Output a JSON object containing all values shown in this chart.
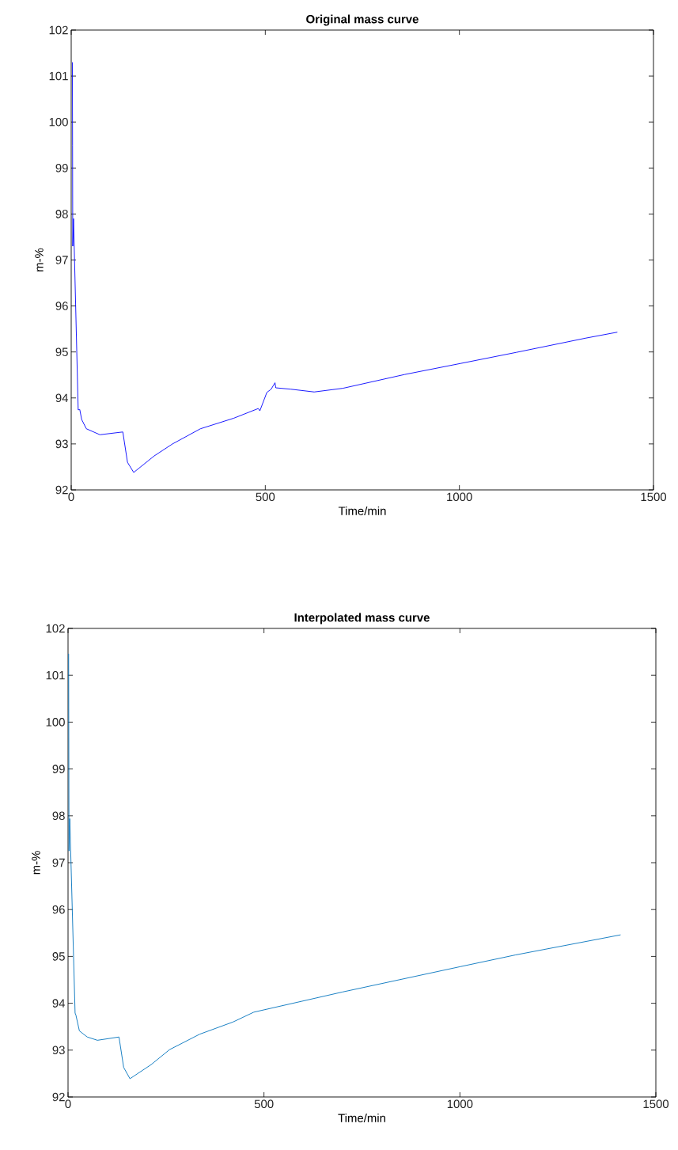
{
  "chart_data": [
    {
      "type": "line",
      "title": "Original mass curve",
      "xlabel": "Time/min",
      "ylabel": "m-%",
      "grid": false,
      "line_style": "solid",
      "xlim": [
        0,
        1500
      ],
      "ylim": [
        92,
        102
      ],
      "xticks": [
        0,
        500,
        1000,
        1500
      ],
      "yticks": [
        92,
        93,
        94,
        95,
        96,
        97,
        98,
        99,
        100,
        101,
        102
      ],
      "x": [
        3,
        3.5,
        4,
        6,
        18,
        22,
        27,
        39,
        74,
        133,
        145,
        161,
        214,
        261,
        333,
        419,
        482,
        486,
        504,
        515,
        525,
        527,
        566,
        626,
        700,
        859,
        1003,
        1146,
        1325,
        1407
      ],
      "series": [
        {
          "color": "#0000ff",
          "values": [
            101.3,
            99.5,
            97.3,
            97.9,
            93.74,
            93.75,
            93.53,
            93.33,
            93.2,
            93.26,
            92.6,
            92.38,
            92.74,
            93.0,
            93.33,
            93.56,
            93.77,
            93.72,
            94.12,
            94.19,
            94.33,
            94.22,
            94.19,
            94.13,
            94.21,
            94.51,
            94.75,
            94.99,
            95.3,
            95.43
          ]
        }
      ]
    },
    {
      "type": "line",
      "title": "Interpolated mass curve",
      "xlabel": "Time/min",
      "ylabel": "m-%",
      "grid": false,
      "line_style": "solid",
      "xlim": [
        0,
        1500
      ],
      "ylim": [
        92,
        102
      ],
      "xticks": [
        0,
        500,
        1000,
        1500
      ],
      "yticks": [
        92,
        93,
        94,
        95,
        96,
        97,
        98,
        99,
        100,
        101,
        102
      ],
      "x": [
        1.5,
        2.5,
        4.5,
        18,
        20,
        29,
        49,
        75,
        130,
        142,
        158,
        212,
        259,
        336,
        421,
        474,
        700,
        1000,
        1141,
        1410
      ],
      "series": [
        {
          "color": "#0072bd",
          "values": [
            101.46,
            97.25,
            97.94,
            93.79,
            93.75,
            93.41,
            93.28,
            93.21,
            93.28,
            92.63,
            92.39,
            92.69,
            93.01,
            93.34,
            93.6,
            93.81,
            94.24,
            94.78,
            95.03,
            95.46
          ]
        }
      ]
    }
  ]
}
